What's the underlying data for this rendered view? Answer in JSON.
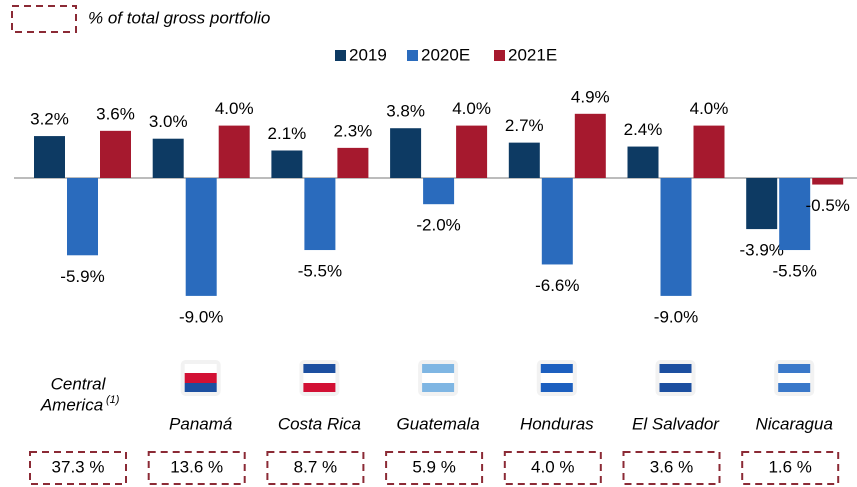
{
  "chart_data": {
    "type": "bar",
    "note": "% of total gross portfolio",
    "categories": [
      "Central America",
      "Panamá",
      "Costa Rica",
      "Guatemala",
      "Honduras",
      "El Salvador",
      "Nicaragua"
    ],
    "category_superscripts": [
      "(1)",
      null,
      null,
      null,
      null,
      null,
      null
    ],
    "series": [
      {
        "name": "2019",
        "color": "#0d3a63",
        "values": [
          3.2,
          3.0,
          2.1,
          3.8,
          2.7,
          2.4,
          -3.9
        ],
        "value_labels": [
          "3.2%",
          "3.0%",
          "2.1%",
          "3.8%",
          "2.7%",
          "2.4%",
          "-3.9%"
        ]
      },
      {
        "name": "2020E",
        "color": "#2a6bbd",
        "values": [
          -5.9,
          -9.0,
          -5.5,
          -2.0,
          -6.6,
          -9.0,
          -5.5
        ],
        "value_labels": [
          "-5.9%",
          "-9.0%",
          "-5.5%",
          "-2.0%",
          "-6.6%",
          "-9.0%",
          "-5.5%"
        ]
      },
      {
        "name": "2021E",
        "color": "#a6192e",
        "values": [
          3.6,
          4.0,
          2.3,
          4.0,
          4.9,
          4.0,
          -0.5
        ],
        "value_labels": [
          "3.6%",
          "4.0%",
          "2.3%",
          "4.0%",
          "4.9%",
          "4.0%",
          "-0.5%"
        ]
      }
    ],
    "portfolio_share": [
      37.3,
      13.6,
      8.7,
      5.9,
      4.0,
      3.6,
      1.6
    ],
    "portfolio_share_labels": [
      "37.3 %",
      "13.6 %",
      "8.7 %",
      "5.9 %",
      "4.0 %",
      "3.6 %",
      "1.6 %"
    ]
  }
}
